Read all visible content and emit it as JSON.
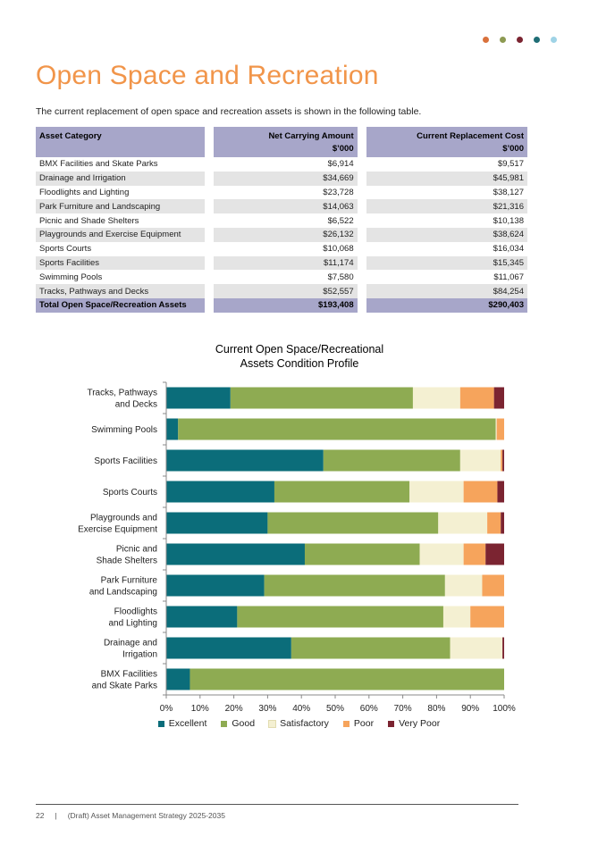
{
  "header_dots": [
    "#d9713c",
    "#8d9a52",
    "#7b2431",
    "#1f6d75",
    "#9fd3e6"
  ],
  "title": "Open Space and Recreation",
  "intro": "The current replacement of open space and recreation assets is shown in the following table.",
  "table": {
    "headers": [
      "Asset Category",
      "Net Carrying Amount",
      "Current Replacement Cost"
    ],
    "units": [
      "",
      "$’000",
      "$’000"
    ],
    "rows": [
      [
        "BMX Facilities and Skate Parks",
        "$6,914",
        "$9,517"
      ],
      [
        "Drainage and Irrigation",
        "$34,669",
        "$45,981"
      ],
      [
        "Floodlights and Lighting",
        "$23,728",
        "$38,127"
      ],
      [
        "Park Furniture and Landscaping",
        "$14,063",
        "$21,316"
      ],
      [
        "Picnic and Shade Shelters",
        "$6,522",
        "$10,138"
      ],
      [
        "Playgrounds and Exercise Equipment",
        "$26,132",
        "$38,624"
      ],
      [
        "Sports Courts",
        "$10,068",
        "$16,034"
      ],
      [
        "Sports Facilities",
        "$11,174",
        "$15,345"
      ],
      [
        "Swimming Pools",
        "$7,580",
        "$11,067"
      ],
      [
        "Tracks, Pathways and Decks",
        "$52,557",
        "$84,254"
      ]
    ],
    "total": [
      "Total Open Space/Recreation Assets",
      "$193,408",
      "$290,403"
    ]
  },
  "chart_data": {
    "type": "bar",
    "orientation": "horizontal",
    "stacked": true,
    "title_lines": [
      "Current Open Space/Recreational",
      "Assets Condition Profile"
    ],
    "categories": [
      [
        "Tracks, Pathways",
        "and Decks"
      ],
      [
        "Swimming Pools"
      ],
      [
        "Sports Facilities"
      ],
      [
        "Sports Courts"
      ],
      [
        "Playgrounds and",
        "Exercise Equipment"
      ],
      [
        "Picnic and",
        "Shade Shelters"
      ],
      [
        "Park Furniture",
        "and Landscaping"
      ],
      [
        "Floodlights",
        "and Lighting"
      ],
      [
        "Drainage and",
        "Irrigation"
      ],
      [
        "BMX Facilities",
        "and Skate Parks"
      ]
    ],
    "series": [
      {
        "name": "Excellent",
        "color": "#0b6d7a",
        "values": [
          19,
          3.5,
          46.5,
          32,
          30,
          41,
          29,
          21,
          37,
          7
        ]
      },
      {
        "name": "Good",
        "color": "#8eab52",
        "values": [
          54,
          94,
          40.5,
          40,
          50.5,
          34,
          53.5,
          61,
          47,
          93
        ]
      },
      {
        "name": "Satisfactory",
        "color": "#f4f0d2",
        "values": [
          14,
          0.3,
          12,
          16,
          14.5,
          13,
          11,
          8,
          15.5,
          0
        ]
      },
      {
        "name": "Poor",
        "color": "#f6a45c",
        "values": [
          10,
          2.2,
          0.5,
          10,
          4,
          6.5,
          6.5,
          10,
          0,
          0
        ]
      },
      {
        "name": "Very Poor",
        "color": "#7b2431",
        "values": [
          3,
          0,
          0.5,
          2,
          1,
          5.5,
          0,
          0,
          0.5,
          0
        ]
      }
    ],
    "x_ticks": [
      "0%",
      "10%",
      "20%",
      "30%",
      "40%",
      "50%",
      "60%",
      "70%",
      "80%",
      "90%",
      "100%"
    ],
    "xlim": [
      0,
      100
    ],
    "grid": false,
    "legend_position": "bottom"
  },
  "footer": {
    "page_number": "22",
    "separator": "|",
    "document_title": "(Draft) Asset Management Strategy 2025-2035"
  }
}
